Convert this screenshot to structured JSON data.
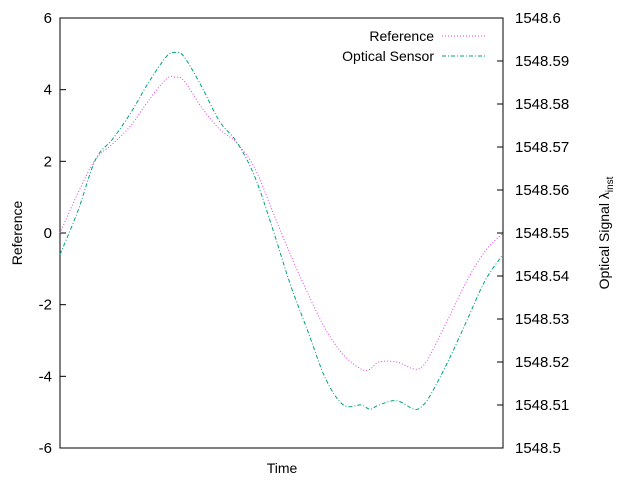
{
  "chart_data": {
    "type": "line",
    "xlabel": "Time",
    "ylabel_left": "Reference",
    "ylabel_right_main": "Optical Signal λ",
    "ylabel_right_sub": "inst",
    "y_left_range": [
      -6,
      6
    ],
    "y_left_ticks": [
      "-6",
      "-4",
      "-2",
      "0",
      "2",
      "4",
      "6"
    ],
    "y_right_range": [
      1548.5,
      1548.6
    ],
    "y_right_ticks": [
      "1548.5",
      "1548.51",
      "1548.52",
      "1548.53",
      "1548.54",
      "1548.55",
      "1548.56",
      "1548.57",
      "1548.58",
      "1548.59",
      "1548.6"
    ],
    "x_range": [
      0,
      1
    ],
    "grid": false,
    "legend": "top-right",
    "series": [
      {
        "name": "Reference",
        "axis": "left",
        "color": "#e040e0",
        "dash": "dotted",
        "x": [
          0,
          0.04,
          0.08,
          0.12,
          0.16,
          0.2,
          0.24,
          0.26,
          0.28,
          0.32,
          0.36,
          0.4,
          0.44,
          0.48,
          0.52,
          0.56,
          0.6,
          0.64,
          0.68,
          0.7,
          0.72,
          0.76,
          0.8,
          0.82,
          0.84,
          0.88,
          0.92,
          0.96,
          1.0
        ],
        "values": [
          0.0,
          1.1,
          2.05,
          2.5,
          3.0,
          3.7,
          4.3,
          4.35,
          4.25,
          3.5,
          2.9,
          2.5,
          1.8,
          0.6,
          -0.6,
          -1.7,
          -2.7,
          -3.4,
          -3.8,
          -3.8,
          -3.6,
          -3.6,
          -3.8,
          -3.7,
          -3.3,
          -2.3,
          -1.3,
          -0.5,
          0.0
        ]
      },
      {
        "name": "Optical Sensor",
        "axis": "right",
        "color": "#00a080",
        "dash": "dash-dot",
        "x": [
          0,
          0.04,
          0.08,
          0.12,
          0.16,
          0.2,
          0.24,
          0.26,
          0.28,
          0.32,
          0.36,
          0.4,
          0.44,
          0.48,
          0.52,
          0.56,
          0.6,
          0.64,
          0.68,
          0.7,
          0.72,
          0.76,
          0.8,
          0.82,
          0.84,
          0.88,
          0.92,
          0.96,
          1.0
        ],
        "values": [
          1548.545,
          1548.555,
          1548.567,
          1548.572,
          1548.578,
          1548.585,
          1548.591,
          1548.592,
          1548.591,
          1548.584,
          1548.576,
          1548.571,
          1548.563,
          1548.551,
          1548.538,
          1548.527,
          1548.516,
          1548.51,
          1548.51,
          1548.509,
          1548.51,
          1548.511,
          1548.509,
          1548.51,
          1548.513,
          1548.521,
          1548.53,
          1548.539,
          1548.545
        ]
      }
    ]
  }
}
